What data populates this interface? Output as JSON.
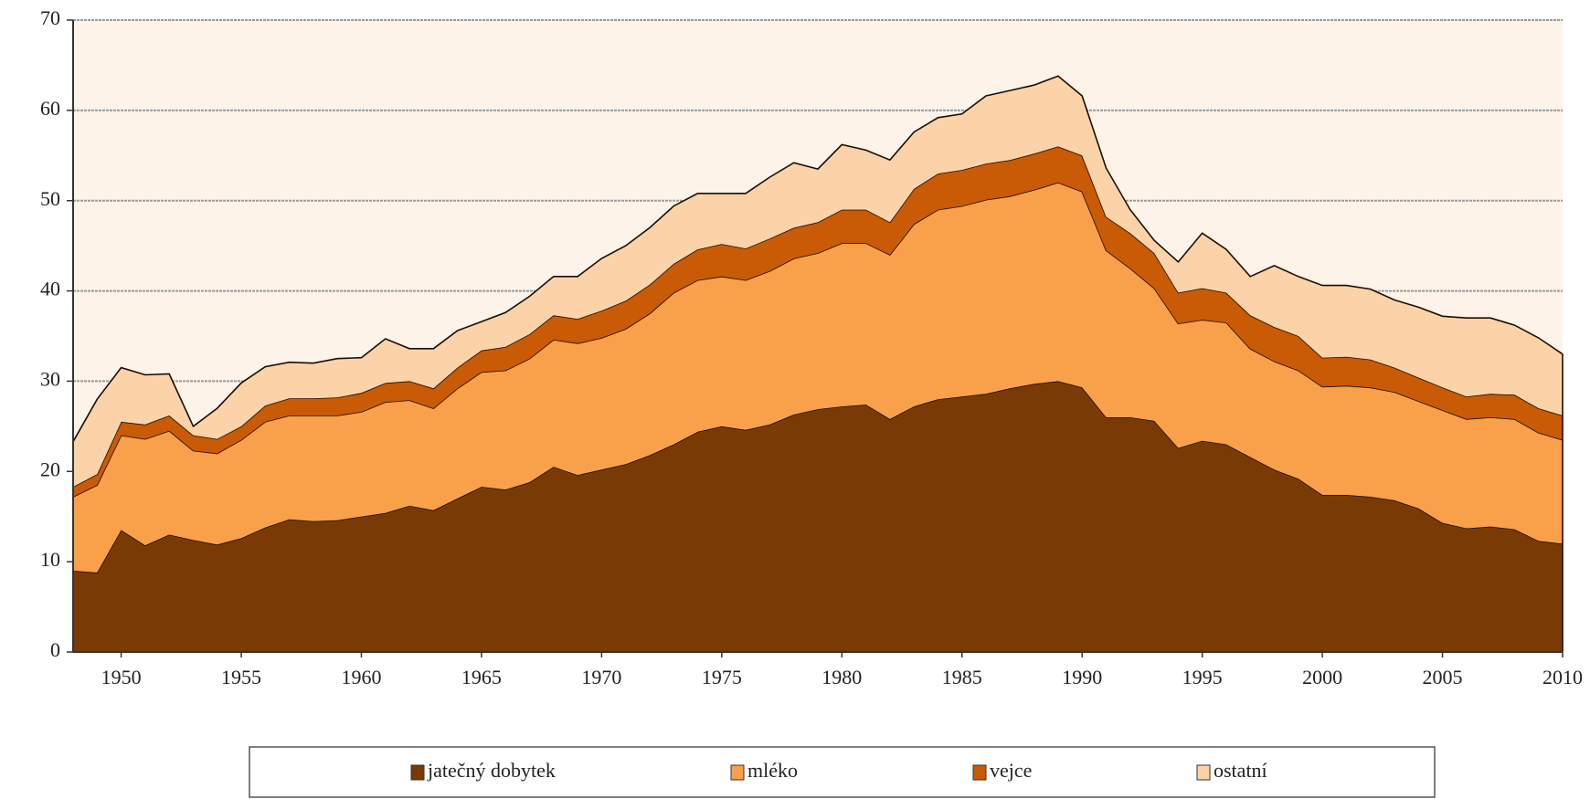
{
  "chart_data": {
    "type": "stacked_area",
    "x": [
      1948,
      1949,
      1950,
      1951,
      1952,
      1953,
      1954,
      1955,
      1956,
      1957,
      1958,
      1959,
      1960,
      1961,
      1962,
      1963,
      1964,
      1965,
      1966,
      1967,
      1968,
      1969,
      1970,
      1971,
      1972,
      1973,
      1974,
      1975,
      1976,
      1977,
      1978,
      1979,
      1980,
      1981,
      1982,
      1983,
      1984,
      1985,
      1986,
      1987,
      1988,
      1989,
      1990,
      1991,
      1992,
      1993,
      1994,
      1995,
      1996,
      1997,
      1998,
      1999,
      2000,
      2001,
      2002,
      2003,
      2004,
      2005,
      2006,
      2007,
      2008,
      2009,
      2010
    ],
    "series": [
      {
        "name": "jatečný dobytek",
        "color": "#7a3a06",
        "values": [
          9,
          8.8,
          13.5,
          11.8,
          13,
          12.4,
          11.9,
          12.6,
          13.8,
          14.7,
          14.5,
          14.6,
          15,
          15.4,
          16.2,
          15.7,
          17,
          18.3,
          18,
          18.8,
          20.5,
          19.6,
          20.2,
          20.8,
          21.8,
          23,
          24.4,
          25,
          24.6,
          25.2,
          26.3,
          26.9,
          27.2,
          27.4,
          25.8,
          27.2,
          28,
          28.3,
          28.6,
          29.2,
          29.7,
          30,
          29.3,
          26,
          26,
          25.6,
          22.6,
          23.4,
          23,
          21.6,
          20.2,
          19.2,
          17.4,
          17.4,
          17.2,
          16.8,
          15.9,
          14.3,
          13.7,
          13.9,
          13.6,
          12.3,
          12
        ]
      },
      {
        "name": "mléko",
        "color": "#f9a04a",
        "values": [
          8.2,
          9.7,
          10.5,
          11.8,
          11.5,
          9.9,
          10.1,
          10.9,
          11.7,
          11.5,
          11.7,
          11.6,
          11.6,
          12.3,
          11.7,
          11.3,
          12.2,
          12.7,
          13.2,
          13.7,
          14.1,
          14.6,
          14.6,
          15,
          15.7,
          16.8,
          16.8,
          16.6,
          16.6,
          17,
          17.3,
          17.3,
          18.1,
          17.9,
          18.2,
          20.2,
          21,
          21.1,
          21.5,
          21.3,
          21.5,
          22,
          21.7,
          18.5,
          16.5,
          14.7,
          13.8,
          13.4,
          13.5,
          12,
          12,
          12,
          12,
          12.1,
          12.1,
          12,
          11.9,
          12.5,
          12.1,
          12.1,
          12.2,
          12,
          11.5
        ]
      },
      {
        "name": "vejce",
        "color": "#c95a06",
        "values": [
          1.1,
          1.2,
          1.5,
          1.6,
          1.7,
          1.7,
          1.6,
          1.5,
          1.8,
          1.9,
          1.9,
          2,
          2.1,
          2.1,
          2.1,
          2.2,
          2.3,
          2.4,
          2.6,
          2.7,
          2.7,
          2.7,
          3,
          3.1,
          3.2,
          3.2,
          3.4,
          3.6,
          3.5,
          3.6,
          3.4,
          3.4,
          3.7,
          3.7,
          3.6,
          3.9,
          4,
          4,
          4,
          4,
          4,
          4,
          4,
          3.7,
          3.9,
          3.9,
          3.4,
          3.5,
          3.3,
          3.7,
          3.8,
          3.8,
          3.2,
          3.2,
          3.1,
          2.7,
          2.6,
          2.5,
          2.5,
          2.6,
          2.7,
          2.7,
          2.7
        ]
      },
      {
        "name": "ostatní",
        "color": "#fcd3a8",
        "values": [
          5,
          8.3,
          6,
          5.5,
          4.6,
          1,
          3.4,
          4.8,
          4.3,
          4,
          3.9,
          4.3,
          3.9,
          4.9,
          3.6,
          4.4,
          4.1,
          3.2,
          3.8,
          4.2,
          4.3,
          4.7,
          5.8,
          6.1,
          6.3,
          6.4,
          6.2,
          5.6,
          6.1,
          6.8,
          7.2,
          5.9,
          7.2,
          6.6,
          6.9,
          6.3,
          6.2,
          6.2,
          7.5,
          7.7,
          7.6,
          7.8,
          6.6,
          5.4,
          2.6,
          1.4,
          3.4,
          6.1,
          4.8,
          4.3,
          6.8,
          6.6,
          8,
          7.9,
          7.8,
          7.5,
          7.8,
          7.9,
          8.7,
          8.4,
          7.7,
          7.8,
          6.8
        ]
      }
    ],
    "xlim": [
      1948,
      2010
    ],
    "xticks": [
      1950,
      1955,
      1960,
      1965,
      1970,
      1975,
      1980,
      1985,
      1990,
      1995,
      2000,
      2005,
      2010
    ],
    "ylim": [
      0,
      70
    ],
    "yticks": [
      0,
      10,
      20,
      30,
      40,
      50,
      60,
      70
    ],
    "grid": true,
    "legend": "bottom"
  }
}
